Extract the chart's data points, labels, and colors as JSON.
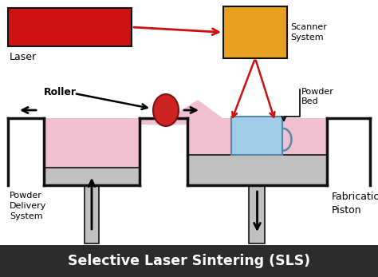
{
  "title": "Selective Laser Sintering (SLS)",
  "title_bg": "#2c2c2c",
  "title_color": "#ffffff",
  "bg_color": "#ffffff",
  "laser_color": "#cc1111",
  "laser_label": "Laser",
  "scanner_color": "#e8a020",
  "scanner_label": "Scanner\nSystem",
  "roller_label": "Roller",
  "powder_bed_label": "Powder\nBed",
  "powder_color": "#f0c0d0",
  "part_color": "#a0cce8",
  "piston_color": "#c0c0c0",
  "frame_color": "#111111",
  "arrow_color": "#cc1111",
  "delivery_label": "Powder\nDelivery\nSystem",
  "fabrication_label": "Fabrication\nPiston"
}
